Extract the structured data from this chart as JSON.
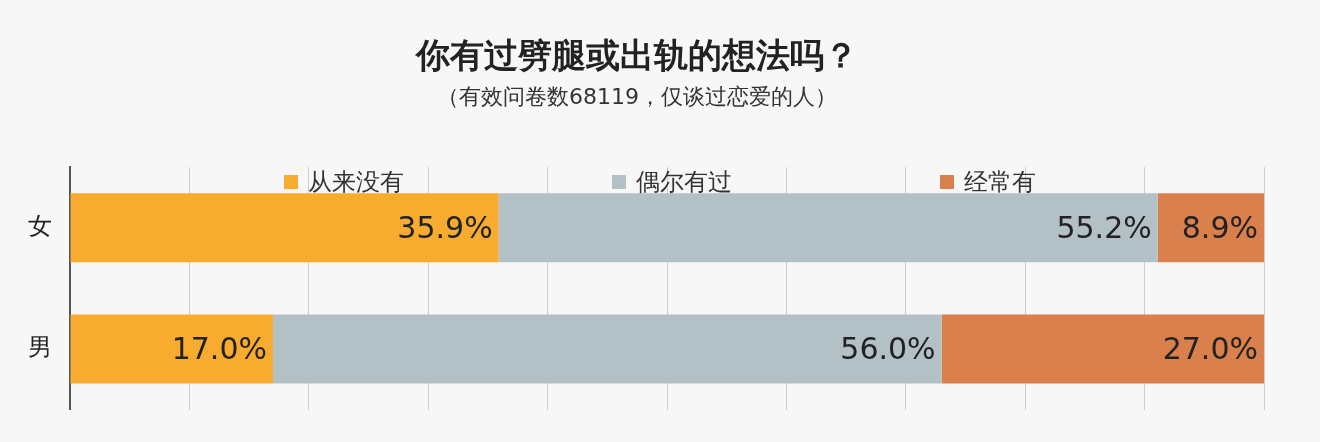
{
  "chart_data": {
    "type": "bar",
    "orientation": "horizontal",
    "stacked": true,
    "title": "你有过劈腿或出轨的想法吗？",
    "subtitle": "（有效问卷数68119，仅谈过恋爱的人）",
    "categories": [
      "女",
      "男"
    ],
    "series": [
      {
        "name": "从来没有",
        "color": "#f7ab2f",
        "values": [
          35.9,
          17.0
        ],
        "value_labels": [
          "35.9%",
          "17.0%"
        ]
      },
      {
        "name": "偶尔有过",
        "color": "#b3c1c7",
        "values": [
          55.2,
          56.0
        ],
        "value_labels": [
          "55.2%",
          "56.0%"
        ]
      },
      {
        "name": "经常有",
        "color": "#d9804c",
        "values": [
          8.9,
          27.0
        ],
        "value_labels": [
          "8.9%",
          "27.0%"
        ]
      }
    ],
    "xlim": [
      0,
      100
    ],
    "xticks": [
      {
        "value": 0,
        "label": null
      },
      {
        "value": 10,
        "label": null
      },
      {
        "value": 20,
        "label": null
      },
      {
        "value": 30,
        "label": null
      },
      {
        "value": 40,
        "label": null
      },
      {
        "value": 50,
        "label": null
      },
      {
        "value": 60,
        "label": null
      },
      {
        "value": 70,
        "label": null
      },
      {
        "value": 80,
        "label": null
      },
      {
        "value": 90,
        "label": null
      },
      {
        "value": 100,
        "label": null
      }
    ],
    "tick_labels": "y",
    "grid": "x",
    "legend": "top"
  }
}
